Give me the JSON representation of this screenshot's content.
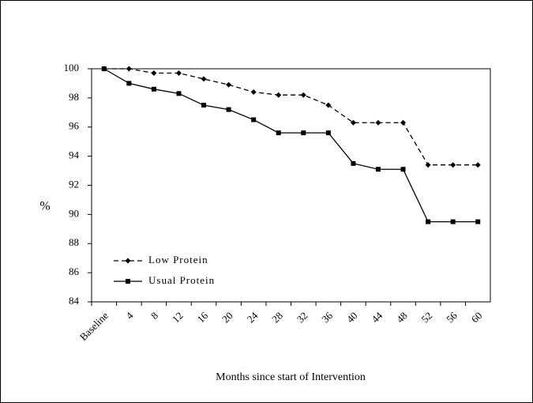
{
  "chart_data": {
    "type": "line",
    "y_label": "%",
    "x_label": "Months since start of Intervention",
    "categories": [
      "Baseline",
      "4",
      "8",
      "12",
      "16",
      "20",
      "24",
      "28",
      "32",
      "36",
      "40",
      "44",
      "48",
      "52",
      "56",
      "60"
    ],
    "series": [
      {
        "name": "Low Protein",
        "color": "#000000",
        "dash": true,
        "marker": "diamond",
        "values": [
          100,
          100,
          99.7,
          99.7,
          99.3,
          98.9,
          98.4,
          98.2,
          98.2,
          97.5,
          96.3,
          96.3,
          96.3,
          93.4,
          93.4,
          93.4
        ]
      },
      {
        "name": "Usual Protein",
        "color": "#000000",
        "dash": false,
        "marker": "square",
        "values": [
          100,
          99.0,
          98.6,
          98.3,
          97.5,
          97.2,
          96.5,
          95.6,
          95.6,
          95.6,
          93.5,
          93.1,
          93.1,
          89.5,
          89.5,
          89.5
        ]
      }
    ],
    "ylim": [
      84,
      100
    ],
    "yticks": [
      84,
      86,
      88,
      90,
      92,
      94,
      96,
      98,
      100
    ],
    "grid": false,
    "legend": "lower left"
  }
}
